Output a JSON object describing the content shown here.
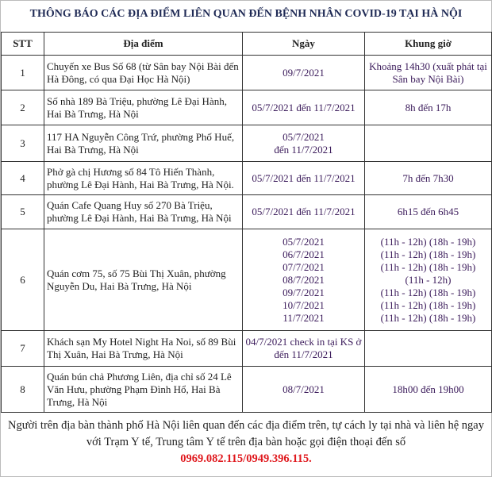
{
  "title": "THÔNG BÁO CÁC ĐỊA ĐIỂM LIÊN QUAN ĐẾN BỆNH NHÂN COVID-19 TẠI HÀ NỘI",
  "headers": [
    "STT",
    "Địa điểm",
    "Ngày",
    "Khung giờ"
  ],
  "rows": [
    {
      "stt": "1",
      "place": "Chuyến xe Bus Số 68 (từ Sân bay Nội Bài đến Hà Đông, có qua Đại Học Hà Nội)",
      "date": [
        "09/7/2021"
      ],
      "time": [
        "Khoảng 14h30 (xuất phát tại Sân bay Nội Bài)"
      ]
    },
    {
      "stt": "2",
      "place": "Số nhà 189 Bà Triệu, phường Lê Đại Hành, Hai Bà Trưng, Hà Nội",
      "date": [
        "05/7/2021 đến 11/7/2021"
      ],
      "time": [
        "8h đến 17h"
      ]
    },
    {
      "stt": "3",
      "place": "117 HA Nguyễn Công Trứ, phường Phố Huế, Hai Bà Trưng, Hà Nội",
      "date": [
        "05/7/2021",
        "đến 11/7/2021"
      ],
      "time": []
    },
    {
      "stt": "4",
      "place": "Phở gà chị Hương số 84 Tô Hiến Thành, phường Lê Đại Hành, Hai Bà Trưng, Hà Nội.",
      "date": [
        "05/7/2021 đến 11/7/2021"
      ],
      "time": [
        "7h đến 7h30"
      ]
    },
    {
      "stt": "5",
      "place": "Quán Cafe Quang Huy số 270 Bà Triệu, phường Lê Đại Hành, Hai Bà Trưng, Hà Nội",
      "date": [
        "05/7/2021 đến 11/7/2021"
      ],
      "time": [
        "6h15 đến 6h45"
      ]
    },
    {
      "stt": "6",
      "place": "Quán cơm 75, số 75 Bùi Thị Xuân, phường Nguyễn Du, Hai Bà Trưng, Hà Nội",
      "date": [
        "05/7/2021",
        "06/7/2021",
        "07/7/2021",
        "08/7/2021",
        "09/7/2021",
        "10/7/2021",
        "11/7/2021"
      ],
      "time": [
        "(11h - 12h) (18h - 19h)",
        "(11h - 12h) (18h - 19h)",
        "(11h - 12h) (18h - 19h)",
        "(11h - 12h)",
        "(11h - 12h) (18h - 19h)",
        "(11h - 12h) (18h - 19h)",
        "(11h - 12h) (18h - 19h)"
      ]
    },
    {
      "stt": "7",
      "place": "Khách sạn My Hotel Night Ha Noi, số 89 Bùi Thị Xuân, Hai Bà Trưng, Hà Nội",
      "date": [
        "04/7/2021 check in tại KS ở",
        "đến 11/7/2021"
      ],
      "time": []
    },
    {
      "stt": "8",
      "place": "Quán bún chả Phương Liên, địa chỉ số 24 Lê Văn Hưu, phường Phạm Đình Hổ, Hai Bà Trưng, Hà Nội",
      "date": [
        "08/7/2021"
      ],
      "time": [
        "18h00 đến 19h00"
      ]
    }
  ],
  "footer": {
    "text": "Người trên địa bàn thành phố Hà Nội liên quan đến các địa điểm trên, tự cách ly tại nhà và liên hệ ngay với Trạm Y tế, Trung tâm Y tế trên địa bàn hoặc gọi điện thoại đến số",
    "phone": "0969.082.115/0949.396.115."
  },
  "colors": {
    "title": "#1f2a55",
    "phone": "#e0191e"
  }
}
